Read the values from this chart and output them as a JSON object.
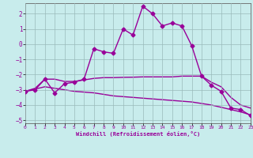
{
  "xlabel": "Windchill (Refroidissement éolien,°C)",
  "xlim": [
    0,
    23
  ],
  "ylim": [
    -5.2,
    2.7
  ],
  "yticks": [
    -5,
    -4,
    -3,
    -2,
    -1,
    0,
    1,
    2
  ],
  "xticks": [
    0,
    1,
    2,
    3,
    4,
    5,
    6,
    7,
    8,
    9,
    10,
    11,
    12,
    13,
    14,
    15,
    16,
    17,
    18,
    19,
    20,
    21,
    22,
    23
  ],
  "background_color": "#c8ecec",
  "grid_color": "#9ababa",
  "line_color": "#990099",
  "line1_x": [
    0,
    1,
    2,
    3,
    4,
    5,
    6,
    7,
    8,
    9,
    10,
    11,
    12,
    13,
    14,
    15,
    16,
    17,
    18,
    19,
    20,
    21,
    22,
    23
  ],
  "line1_y": [
    -3.1,
    -3.0,
    -2.3,
    -3.2,
    -2.6,
    -2.5,
    -2.3,
    -0.3,
    -0.5,
    -0.6,
    1.0,
    0.6,
    2.5,
    2.0,
    1.2,
    1.4,
    1.2,
    -0.1,
    -2.1,
    -2.7,
    -3.1,
    -4.2,
    -4.3,
    -4.7
  ],
  "line2_x": [
    0,
    1,
    2,
    3,
    4,
    5,
    6,
    7,
    8,
    9,
    10,
    11,
    12,
    13,
    14,
    15,
    16,
    17,
    18,
    19,
    20,
    21,
    22,
    23
  ],
  "line2_y": [
    -3.1,
    -2.9,
    -2.3,
    -2.3,
    -2.45,
    -2.45,
    -2.35,
    -2.25,
    -2.2,
    -2.2,
    -2.18,
    -2.17,
    -2.15,
    -2.15,
    -2.15,
    -2.15,
    -2.1,
    -2.1,
    -2.1,
    -2.5,
    -2.8,
    -3.5,
    -4.0,
    -4.2
  ],
  "line3_x": [
    0,
    1,
    2,
    3,
    4,
    5,
    6,
    7,
    8,
    9,
    10,
    11,
    12,
    13,
    14,
    15,
    16,
    17,
    18,
    19,
    20,
    21,
    22,
    23
  ],
  "line3_y": [
    -3.1,
    -2.95,
    -2.8,
    -2.9,
    -3.0,
    -3.1,
    -3.15,
    -3.2,
    -3.3,
    -3.4,
    -3.45,
    -3.5,
    -3.55,
    -3.6,
    -3.65,
    -3.7,
    -3.75,
    -3.8,
    -3.9,
    -4.0,
    -4.15,
    -4.3,
    -4.45,
    -4.65
  ],
  "marker": "D",
  "markersize": 2.5,
  "linewidth": 1.0
}
